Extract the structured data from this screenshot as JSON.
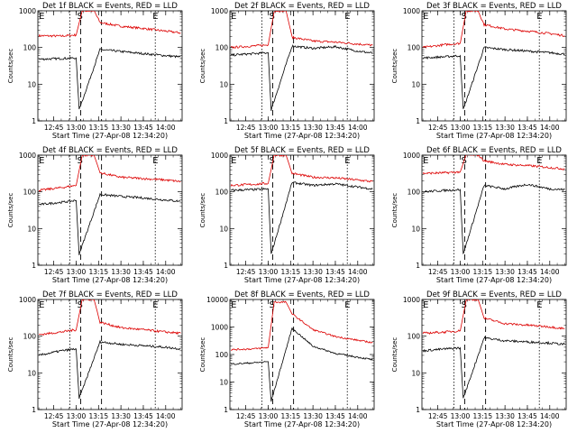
{
  "figure": {
    "xlabel": "Start Time (27-Apr-08 12:34:20)",
    "ylabel": "Counts/sec",
    "x_tick_labels": [
      "12:45",
      "13:00",
      "13:15",
      "13:30",
      "13:45",
      "14:00"
    ],
    "y_tick_labels": [
      "1",
      "10",
      "100",
      "1000"
    ],
    "y_tick_labels_extended": [
      "1",
      "10",
      "100",
      "1000",
      "10000"
    ],
    "series_colors": {
      "events": "#000000",
      "lld": "#dd0000"
    },
    "marker_style": "dashed vertical = S/E event markers, dotted = interval markers"
  },
  "chart_data": [
    {
      "type": "line",
      "title": "Det 1f BLACK = Events, RED = LLD",
      "xlabel": "Start Time (27-Apr-08 12:34:20)",
      "ylabel": "Counts/sec",
      "xlim": [
        "12:34:20",
        "14:11:00"
      ],
      "ylim": [
        1,
        1000
      ],
      "log_y": true,
      "markers": {
        "S": "13:03",
        "E1": "12:35",
        "E2": "13:53"
      },
      "series": [
        {
          "points": [
            [
              "12:35",
              210
            ],
            [
              "12:50",
              205
            ],
            [
              "13:00",
              220
            ],
            [
              "13:04",
              1000
            ],
            [
              "13:12",
              1000
            ],
            [
              "13:16",
              480
            ],
            [
              "13:30",
              380
            ],
            [
              "13:45",
              330
            ],
            [
              "14:00",
              280
            ],
            [
              "14:10",
              250
            ]
          ]
        },
        {
          "points": [
            [
              "12:35",
              48
            ],
            [
              "12:50",
              50
            ],
            [
              "13:00",
              52
            ],
            [
              "13:02",
              2
            ],
            [
              "13:16",
              88
            ],
            [
              "13:30",
              78
            ],
            [
              "13:45",
              68
            ],
            [
              "14:00",
              60
            ],
            [
              "14:10",
              55
            ]
          ]
        }
      ]
    },
    {
      "type": "line",
      "title": "Det 2f BLACK = Events, RED = LLD",
      "xlabel": "Start Time (27-Apr-08 12:34:20)",
      "ylabel": "Counts/sec",
      "xlim": [
        "12:34:20",
        "14:11:00"
      ],
      "ylim": [
        1,
        1000
      ],
      "log_y": true,
      "markers": {
        "S": "13:03",
        "E1": "12:35",
        "E2": "13:53"
      },
      "series": [
        {
          "points": [
            [
              "12:35",
              100
            ],
            [
              "12:50",
              110
            ],
            [
              "13:00",
              118
            ],
            [
              "13:04",
              1000
            ],
            [
              "13:12",
              1000
            ],
            [
              "13:16",
              190
            ],
            [
              "13:30",
              150
            ],
            [
              "13:45",
              140
            ],
            [
              "14:00",
              125
            ],
            [
              "14:10",
              115
            ]
          ]
        },
        {
          "points": [
            [
              "12:35",
              62
            ],
            [
              "12:50",
              68
            ],
            [
              "13:00",
              72
            ],
            [
              "13:02",
              2
            ],
            [
              "13:16",
              110
            ],
            [
              "13:30",
              95
            ],
            [
              "13:45",
              105
            ],
            [
              "14:00",
              80
            ],
            [
              "14:10",
              70
            ]
          ]
        }
      ]
    },
    {
      "type": "line",
      "title": "Det 3f BLACK = Events, RED = LLD",
      "xlabel": "Start Time (27-Apr-08 12:34:20)",
      "ylabel": "Counts/sec",
      "xlim": [
        "12:34:20",
        "14:11:00"
      ],
      "ylim": [
        1,
        1000
      ],
      "log_y": true,
      "markers": {
        "S": "13:03",
        "E1": "12:35",
        "E2": "13:53"
      },
      "series": [
        {
          "points": [
            [
              "12:35",
              100
            ],
            [
              "12:50",
              120
            ],
            [
              "13:00",
              130
            ],
            [
              "13:04",
              1000
            ],
            [
              "13:12",
              1000
            ],
            [
              "13:16",
              420
            ],
            [
              "13:30",
              320
            ],
            [
              "13:45",
              280
            ],
            [
              "14:00",
              240
            ],
            [
              "14:10",
              210
            ]
          ]
        },
        {
          "points": [
            [
              "12:35",
              52
            ],
            [
              "12:50",
              56
            ],
            [
              "13:00",
              60
            ],
            [
              "13:02",
              2
            ],
            [
              "13:16",
              100
            ],
            [
              "13:30",
              88
            ],
            [
              "13:45",
              80
            ],
            [
              "14:00",
              72
            ],
            [
              "14:10",
              66
            ]
          ]
        }
      ]
    },
    {
      "type": "line",
      "title": "Det 4f BLACK = Events, RED = LLD",
      "xlabel": "Start Time (27-Apr-08 12:34:20)",
      "ylabel": "Counts/sec",
      "xlim": [
        "12:34:20",
        "14:11:00"
      ],
      "ylim": [
        1,
        1000
      ],
      "log_y": true,
      "markers": {
        "S": "13:03",
        "E1": "12:35",
        "E2": "13:53"
      },
      "series": [
        {
          "points": [
            [
              "12:35",
              110
            ],
            [
              "12:50",
              130
            ],
            [
              "13:00",
              150
            ],
            [
              "13:04",
              1000
            ],
            [
              "13:12",
              1000
            ],
            [
              "13:16",
              330
            ],
            [
              "13:30",
              250
            ],
            [
              "13:45",
              230
            ],
            [
              "14:00",
              210
            ],
            [
              "14:10",
              190
            ]
          ]
        },
        {
          "points": [
            [
              "12:35",
              45
            ],
            [
              "12:50",
              52
            ],
            [
              "13:00",
              58
            ],
            [
              "13:02",
              2
            ],
            [
              "13:16",
              85
            ],
            [
              "13:30",
              75
            ],
            [
              "13:45",
              68
            ],
            [
              "14:00",
              60
            ],
            [
              "14:10",
              55
            ]
          ]
        }
      ]
    },
    {
      "type": "line",
      "title": "Det 5f BLACK = Events, RED = LLD",
      "xlabel": "Start Time (27-Apr-08 12:34:20)",
      "ylabel": "Counts/sec",
      "xlim": [
        "12:34:20",
        "14:11:00"
      ],
      "ylim": [
        1,
        1000
      ],
      "log_y": true,
      "markers": {
        "S": "13:03",
        "E1": "12:35",
        "E2": "13:53"
      },
      "series": [
        {
          "points": [
            [
              "12:35",
              150
            ],
            [
              "12:50",
              160
            ],
            [
              "13:00",
              170
            ],
            [
              "13:04",
              1000
            ],
            [
              "13:12",
              1000
            ],
            [
              "13:16",
              320
            ],
            [
              "13:30",
              250
            ],
            [
              "13:45",
              240
            ],
            [
              "14:00",
              210
            ],
            [
              "14:10",
              190
            ]
          ]
        },
        {
          "points": [
            [
              "12:35",
              110
            ],
            [
              "12:50",
              115
            ],
            [
              "13:00",
              120
            ],
            [
              "13:02",
              2
            ],
            [
              "13:16",
              180
            ],
            [
              "13:30",
              150
            ],
            [
              "13:45",
              165
            ],
            [
              "14:00",
              135
            ],
            [
              "14:10",
              120
            ]
          ]
        }
      ]
    },
    {
      "type": "line",
      "title": "Det 6f BLACK = Events, RED = LLD",
      "xlabel": "Start Time (27-Apr-08 12:34:20)",
      "ylabel": "Counts/sec",
      "xlim": [
        "12:34:20",
        "14:11:00"
      ],
      "ylim": [
        1,
        1000
      ],
      "log_y": true,
      "markers": {
        "S": "13:03",
        "E1": "12:35",
        "E2": "13:53"
      },
      "series": [
        {
          "points": [
            [
              "12:35",
              320
            ],
            [
              "12:50",
              330
            ],
            [
              "13:00",
              350
            ],
            [
              "13:04",
              1000
            ],
            [
              "13:12",
              1000
            ],
            [
              "13:16",
              700
            ],
            [
              "13:30",
              560
            ],
            [
              "13:45",
              520
            ],
            [
              "14:00",
              460
            ],
            [
              "14:10",
              420
            ]
          ]
        },
        {
          "points": [
            [
              "12:35",
              100
            ],
            [
              "12:50",
              110
            ],
            [
              "13:00",
              115
            ],
            [
              "13:02",
              2
            ],
            [
              "13:16",
              150
            ],
            [
              "13:30",
              120
            ],
            [
              "13:45",
              160
            ],
            [
              "14:00",
              120
            ],
            [
              "14:10",
              115
            ]
          ]
        }
      ]
    },
    {
      "type": "line",
      "title": "Det 7f BLACK = Events, RED = LLD",
      "xlabel": "Start Time (27-Apr-08 12:34:20)",
      "ylabel": "Counts/sec",
      "xlim": [
        "12:34:20",
        "14:11:00"
      ],
      "ylim": [
        1,
        1000
      ],
      "log_y": true,
      "markers": {
        "S": "13:03",
        "E1": "12:35",
        "E2": "13:53"
      },
      "series": [
        {
          "points": [
            [
              "12:35",
              110
            ],
            [
              "12:50",
              130
            ],
            [
              "13:00",
              150
            ],
            [
              "13:04",
              1000
            ],
            [
              "13:12",
              1000
            ],
            [
              "13:16",
              240
            ],
            [
              "13:30",
              170
            ],
            [
              "13:45",
              150
            ],
            [
              "14:00",
              130
            ],
            [
              "14:10",
              120
            ]
          ]
        },
        {
          "points": [
            [
              "12:35",
              30
            ],
            [
              "12:50",
              40
            ],
            [
              "13:00",
              45
            ],
            [
              "13:02",
              2
            ],
            [
              "13:16",
              70
            ],
            [
              "13:30",
              60
            ],
            [
              "13:45",
              55
            ],
            [
              "14:00",
              50
            ],
            [
              "14:10",
              45
            ]
          ]
        }
      ]
    },
    {
      "type": "line",
      "title": "Det 8f BLACK = Events, RED = LLD",
      "xlabel": "Start Time (27-Apr-08 12:34:20)",
      "ylabel": "Counts/sec",
      "xlim": [
        "12:34:20",
        "14:11:00"
      ],
      "ylim": [
        1,
        10000
      ],
      "log_y": true,
      "markers": {
        "S": "13:03",
        "E1": "12:35",
        "E2": "13:53"
      },
      "series": [
        {
          "points": [
            [
              "12:35",
              150
            ],
            [
              "12:50",
              160
            ],
            [
              "13:00",
              180
            ],
            [
              "13:04",
              8000
            ],
            [
              "13:12",
              8000
            ],
            [
              "13:16",
              3000
            ],
            [
              "13:30",
              800
            ],
            [
              "13:45",
              450
            ],
            [
              "14:00",
              330
            ],
            [
              "14:10",
              270
            ]
          ]
        },
        {
          "points": [
            [
              "12:35",
              45
            ],
            [
              "12:50",
              50
            ],
            [
              "13:00",
              55
            ],
            [
              "13:02",
              2
            ],
            [
              "13:16",
              900
            ],
            [
              "13:30",
              200
            ],
            [
              "13:45",
              110
            ],
            [
              "14:00",
              80
            ],
            [
              "14:10",
              65
            ]
          ]
        }
      ]
    },
    {
      "type": "line",
      "title": "Det 9f BLACK = Events, RED = LLD",
      "xlabel": "Start Time (27-Apr-08 12:34:20)",
      "ylabel": "Counts/sec",
      "xlim": [
        "12:34:20",
        "14:11:00"
      ],
      "ylim": [
        1,
        1000
      ],
      "log_y": true,
      "markers": {
        "S": "13:03",
        "E1": "12:35",
        "E2": "13:53"
      },
      "series": [
        {
          "points": [
            [
              "12:35",
              120
            ],
            [
              "12:50",
              130
            ],
            [
              "13:00",
              140
            ],
            [
              "13:04",
              1000
            ],
            [
              "13:12",
              1000
            ],
            [
              "13:16",
              310
            ],
            [
              "13:30",
              220
            ],
            [
              "13:45",
              200
            ],
            [
              "14:00",
              180
            ],
            [
              "14:10",
              160
            ]
          ]
        },
        {
          "points": [
            [
              "12:35",
              40
            ],
            [
              "12:50",
              45
            ],
            [
              "13:00",
              48
            ],
            [
              "13:02",
              2
            ],
            [
              "13:16",
              90
            ],
            [
              "13:30",
              75
            ],
            [
              "13:45",
              70
            ],
            [
              "14:00",
              65
            ],
            [
              "14:10",
              60
            ]
          ]
        }
      ]
    }
  ]
}
